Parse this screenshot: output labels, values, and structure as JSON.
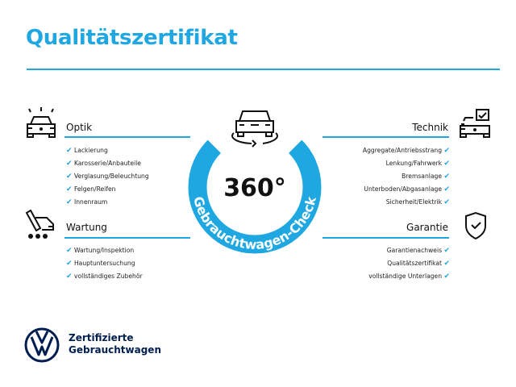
{
  "title": "Qualitätszertifikat",
  "colors": {
    "accent": "#1ea7e1",
    "brand": "#001e50"
  },
  "center": {
    "value": "360°",
    "arc_text": "Gebrauchtwagen-Check",
    "icon": "car-rotate-icon"
  },
  "sections": {
    "optik": {
      "heading": "Optik",
      "icon": "car-lights-icon",
      "items": [
        "Lackierung",
        "Karosserie/Anbauteile",
        "Verglasung/Beleuchtung",
        "Felgen/Reifen",
        "Innenraum"
      ]
    },
    "wartung": {
      "heading": "Wartung",
      "icon": "service-van-icon",
      "items": [
        "Wartung/Inspektion",
        "Hauptuntersuchung",
        "vollständiges Zubehör"
      ]
    },
    "technik": {
      "heading": "Technik",
      "icon": "car-checkbox-icon",
      "items": [
        "Aggregate/Antriebsstrang",
        "Lenkung/Fahrwerk",
        "Bremsanlage",
        "Unterboden/Abgasanlage",
        "Sicherheit/Elektrik"
      ]
    },
    "garantie": {
      "heading": "Garantie",
      "icon": "shield-check-icon",
      "items": [
        "Garantienachweis",
        "Qualitätszertifikat",
        "vollständige Unterlagen"
      ]
    }
  },
  "check_mark": "✔",
  "footer": {
    "logo": "vw-logo",
    "line1": "Zertifizierte",
    "line2": "Gebrauchtwagen"
  }
}
